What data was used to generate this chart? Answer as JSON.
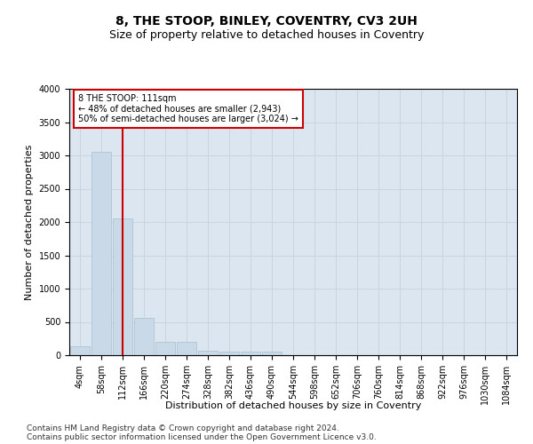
{
  "title": "8, THE STOOP, BINLEY, COVENTRY, CV3 2UH",
  "subtitle": "Size of property relative to detached houses in Coventry",
  "xlabel": "Distribution of detached houses by size in Coventry",
  "ylabel": "Number of detached properties",
  "footnote1": "Contains HM Land Registry data © Crown copyright and database right 2024.",
  "footnote2": "Contains public sector information licensed under the Open Government Licence v3.0.",
  "bar_labels": [
    "4sqm",
    "58sqm",
    "112sqm",
    "166sqm",
    "220sqm",
    "274sqm",
    "328sqm",
    "382sqm",
    "436sqm",
    "490sqm",
    "544sqm",
    "598sqm",
    "652sqm",
    "706sqm",
    "760sqm",
    "814sqm",
    "868sqm",
    "922sqm",
    "976sqm",
    "1030sqm",
    "1084sqm"
  ],
  "bar_values": [
    130,
    3060,
    2060,
    560,
    195,
    195,
    70,
    55,
    50,
    50,
    0,
    0,
    0,
    0,
    0,
    0,
    0,
    0,
    0,
    0,
    0
  ],
  "bar_color": "#c9d9e8",
  "bar_edge_color": "#a8bece",
  "red_line_index": 2,
  "annotation_line1": "8 THE STOOP: 111sqm",
  "annotation_line2": "← 48% of detached houses are smaller (2,943)",
  "annotation_line3": "50% of semi-detached houses are larger (3,024) →",
  "annotation_box_color": "#ffffff",
  "annotation_box_edge": "#cc0000",
  "ylim": [
    0,
    4000
  ],
  "yticks": [
    0,
    500,
    1000,
    1500,
    2000,
    2500,
    3000,
    3500,
    4000
  ],
  "grid_color": "#c8d4e0",
  "background_color": "#dce6f0",
  "title_fontsize": 10,
  "subtitle_fontsize": 9,
  "axis_label_fontsize": 8,
  "tick_fontsize": 7,
  "annotation_fontsize": 7,
  "footnote_fontsize": 6.5
}
